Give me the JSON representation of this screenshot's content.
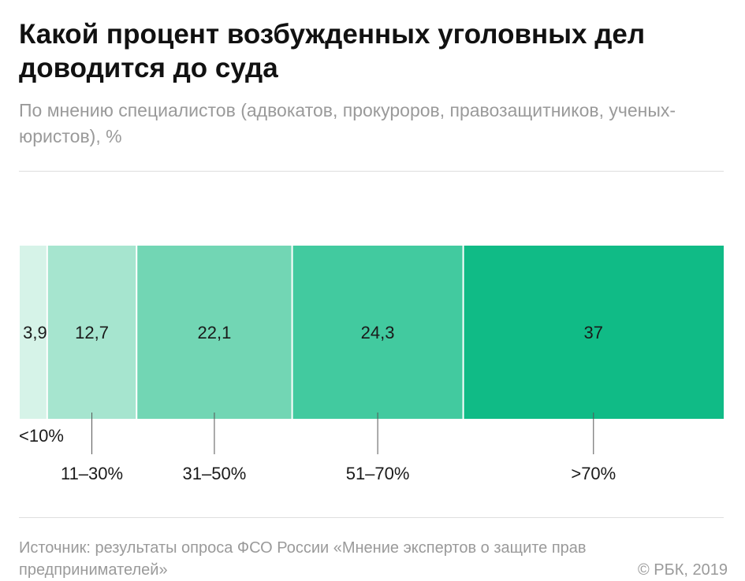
{
  "header": {
    "title": "Какой процент возбужденных уголовных дел доводится до суда",
    "subtitle": "По мнению специалистов (адвокатов, прокуроров, правозащитников, ученых-юристов), %"
  },
  "chart_data": {
    "type": "bar",
    "orientation": "horizontal-stacked",
    "categories": [
      "<10%",
      "11–30%",
      "31–50%",
      "51–70%",
      ">70%"
    ],
    "values": [
      3.9,
      12.7,
      22.1,
      24.3,
      37
    ],
    "value_labels": [
      "3,9",
      "12,7",
      "22,1",
      "24,3",
      "37"
    ],
    "colors": [
      "#d6f3e8",
      "#a6e5cf",
      "#72d6b4",
      "#42ca9f",
      "#10bb86"
    ],
    "total": 100,
    "legend": "none",
    "grid": false
  },
  "footer": {
    "source": "Источник: результаты опроса ФСО России «Мнение экспертов о защите прав предпринимателей»",
    "copyright": "© РБК, 2019"
  }
}
